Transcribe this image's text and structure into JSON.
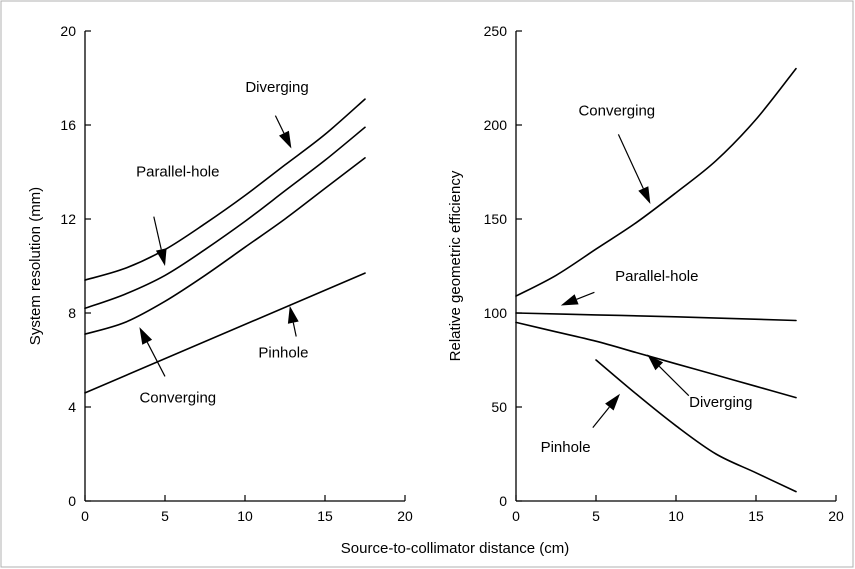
{
  "chart_data": [
    {
      "type": "line",
      "title": "",
      "xlabel": "",
      "ylabel": "System resolution (mm)",
      "xlim": [
        0,
        20
      ],
      "ylim": [
        0,
        20
      ],
      "xticks": [
        0,
        5,
        10,
        15,
        20
      ],
      "yticks": [
        0,
        4,
        8,
        12,
        16,
        20
      ],
      "grid": false,
      "legend": "none",
      "series": [
        {
          "name": "Diverging",
          "x": [
            0,
            2.5,
            5,
            7.5,
            10,
            12.5,
            15,
            17.5
          ],
          "y": [
            9.4,
            9.9,
            10.7,
            11.8,
            13.0,
            14.3,
            15.6,
            17.1
          ]
        },
        {
          "name": "Parallel-hole",
          "x": [
            0,
            2.5,
            5,
            7.5,
            10,
            12.5,
            15,
            17.5
          ],
          "y": [
            8.2,
            8.8,
            9.6,
            10.7,
            11.9,
            13.2,
            14.5,
            15.9
          ]
        },
        {
          "name": "Converging",
          "x": [
            0,
            2.5,
            5,
            7.5,
            10,
            12.5,
            15,
            17.5
          ],
          "y": [
            7.1,
            7.6,
            8.5,
            9.6,
            10.8,
            12.0,
            13.3,
            14.6
          ]
        },
        {
          "name": "Pinhole",
          "x": [
            0,
            17.5
          ],
          "y": [
            4.6,
            9.7
          ]
        }
      ],
      "annotations": [
        {
          "text": "Diverging",
          "label_x": 12.0,
          "label_y": 17.4,
          "arrow_from": [
            11.9,
            16.4
          ],
          "arrow_to": [
            12.9,
            15.0
          ]
        },
        {
          "text": "Parallel-hole",
          "label_x": 5.8,
          "label_y": 13.8,
          "arrow_from": [
            4.3,
            12.1
          ],
          "arrow_to": [
            5.0,
            10.0
          ]
        },
        {
          "text": "Converging",
          "label_x": 5.8,
          "label_y": 4.2,
          "arrow_from": [
            5.0,
            5.3
          ],
          "arrow_to": [
            3.4,
            7.4
          ]
        },
        {
          "text": "Pinhole",
          "label_x": 12.4,
          "label_y": 6.1,
          "arrow_from": [
            13.2,
            7.0
          ],
          "arrow_to": [
            12.8,
            8.3
          ]
        }
      ]
    },
    {
      "type": "line",
      "title": "",
      "xlabel": "",
      "ylabel": "Relative geometric efficiency",
      "xlim": [
        0,
        20
      ],
      "ylim": [
        0,
        250
      ],
      "xticks": [
        0,
        5,
        10,
        15,
        20
      ],
      "yticks": [
        0,
        50,
        100,
        150,
        200,
        250
      ],
      "grid": false,
      "legend": "none",
      "series": [
        {
          "name": "Converging",
          "x": [
            0,
            2.5,
            5,
            7.5,
            10,
            12.5,
            15,
            17.5
          ],
          "y": [
            109,
            120,
            134,
            148,
            164,
            181,
            203,
            230
          ]
        },
        {
          "name": "Parallel-hole",
          "x": [
            0,
            5,
            10,
            17.5
          ],
          "y": [
            100,
            99,
            98,
            96
          ]
        },
        {
          "name": "Diverging",
          "x": [
            0,
            2.5,
            5,
            7.5,
            10,
            12.5,
            15,
            17.5
          ],
          "y": [
            95,
            90,
            85,
            79,
            73,
            67,
            61,
            55
          ]
        },
        {
          "name": "Pinhole",
          "x": [
            5,
            7.5,
            10,
            12.5,
            15,
            17.5
          ],
          "y": [
            75,
            57,
            40,
            25,
            15,
            5
          ]
        }
      ],
      "annotations": [
        {
          "text": "Converging",
          "label_x": 6.3,
          "label_y": 205,
          "arrow_from": [
            6.4,
            195
          ],
          "arrow_to": [
            8.4,
            158
          ]
        },
        {
          "text": "Parallel-hole",
          "label_x": 8.8,
          "label_y": 117,
          "arrow_from": [
            4.9,
            111
          ],
          "arrow_to": [
            2.8,
            104
          ]
        },
        {
          "text": "Diverging",
          "label_x": 12.8,
          "label_y": 50,
          "arrow_from": [
            10.8,
            56
          ],
          "arrow_to": [
            8.2,
            78
          ]
        },
        {
          "text": "Pinhole",
          "label_x": 3.1,
          "label_y": 26,
          "arrow_from": [
            4.8,
            39
          ],
          "arrow_to": [
            6.5,
            57
          ]
        }
      ]
    }
  ],
  "shared_xlabel": "Source-to-collimator distance (cm)"
}
